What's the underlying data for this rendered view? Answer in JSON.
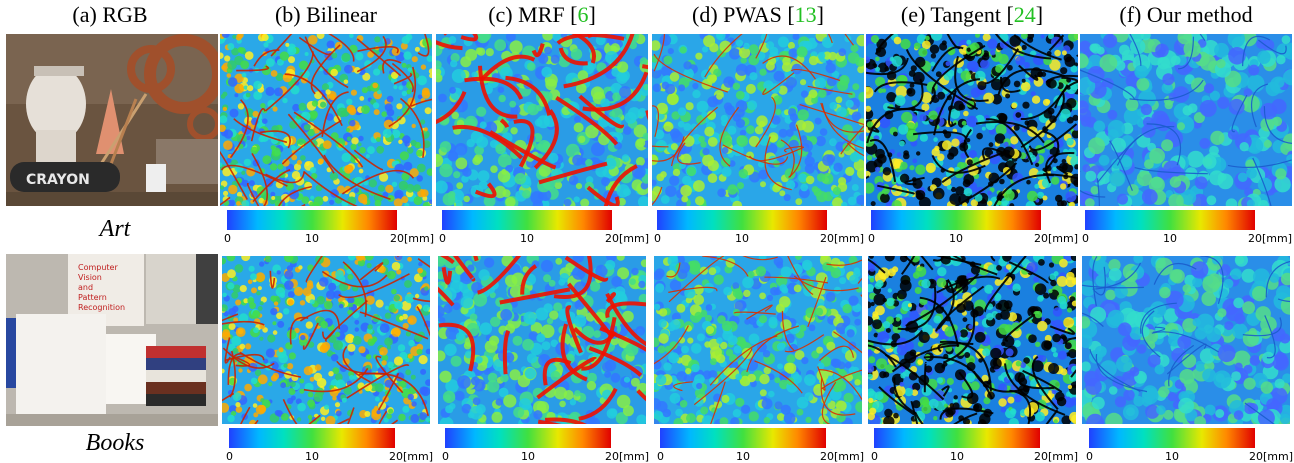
{
  "columns": [
    {
      "label": "(a) RGB",
      "ref": ""
    },
    {
      "label": "(b) Bilinear",
      "ref": ""
    },
    {
      "label": "(c) MRF [",
      "ref": "6"
    },
    {
      "label": "(d) PWAS [",
      "ref": "13"
    },
    {
      "label": "(e) Tangent [",
      "ref": "24"
    },
    {
      "label": "(f) Our method",
      "ref": ""
    }
  ],
  "rows": [
    {
      "label": "Art"
    },
    {
      "label": "Books"
    }
  ],
  "colorbar": {
    "min": "0",
    "mid": "10",
    "max": "20[mm]"
  },
  "colors": {
    "ref": "#22c022"
  }
}
